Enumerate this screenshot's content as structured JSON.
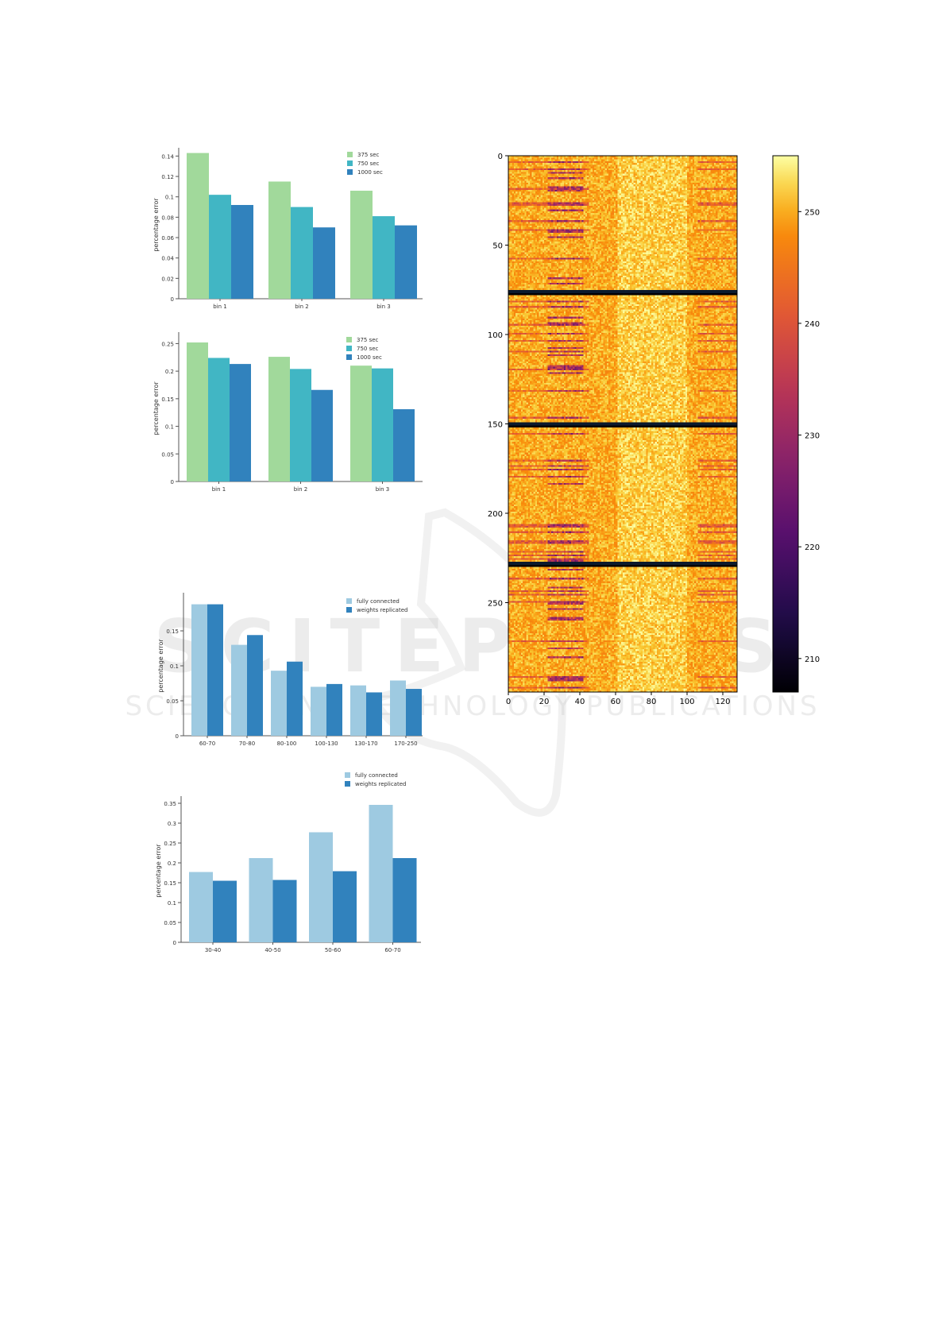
{
  "watermark": {
    "line1": "SCITEPRESS",
    "line2": "SCIENCE AND TECHNOLOGY PUBLICATIONS"
  },
  "colors": {
    "green": "#a1d99b",
    "teal": "#41b6c4",
    "blue": "#3182bd",
    "light_blue": "#9ecae1",
    "dark_blue": "#3182bd"
  },
  "chart_data": [
    {
      "id": "chart1",
      "type": "bar",
      "ylabel": "percentage error",
      "xlabel": "",
      "categories": [
        "bin 1",
        "bin 2",
        "bin 3"
      ],
      "ylim": [
        0,
        0.145
      ],
      "yticks": [
        0,
        0.02,
        0.04,
        0.06,
        0.08,
        0.1,
        0.12,
        0.14
      ],
      "ytick_labels": [
        "0",
        "0.02",
        "0.04",
        "0.06",
        "0.08",
        "0.1",
        "0.12",
        "0.14"
      ],
      "legend_position": "top-right",
      "series": [
        {
          "name": "375 sec",
          "color": "#a1d99b",
          "values": [
            0.143,
            0.115,
            0.106
          ]
        },
        {
          "name": "750 sec",
          "color": "#41b6c4",
          "values": [
            0.102,
            0.09,
            0.081
          ]
        },
        {
          "name": "1000 sec",
          "color": "#3182bd",
          "values": [
            0.092,
            0.07,
            0.072
          ]
        }
      ]
    },
    {
      "id": "chart2",
      "type": "bar",
      "ylabel": "percentage error",
      "xlabel": "",
      "categories": [
        "bin 1",
        "bin 2",
        "bin 3"
      ],
      "ylim": [
        0,
        0.265
      ],
      "yticks": [
        0,
        0.05,
        0.1,
        0.15,
        0.2,
        0.25
      ],
      "ytick_labels": [
        "0",
        "0.05",
        "0.1",
        "0.15",
        "0.2",
        "0.25"
      ],
      "legend_position": "top-right",
      "series": [
        {
          "name": "375 sec",
          "color": "#a1d99b",
          "values": [
            0.252,
            0.226,
            0.21
          ]
        },
        {
          "name": "750 sec",
          "color": "#41b6c4",
          "values": [
            0.224,
            0.204,
            0.205
          ]
        },
        {
          "name": "1000 sec",
          "color": "#3182bd",
          "values": [
            0.213,
            0.166,
            0.131
          ]
        }
      ]
    },
    {
      "id": "chart3",
      "type": "bar",
      "ylabel": "percentage error",
      "xlabel": "",
      "categories": [
        "60-70",
        "70-80",
        "80-100",
        "100-130",
        "130-170",
        "170-250"
      ],
      "ylim": [
        0,
        0.2
      ],
      "yticks": [
        0,
        0.05,
        0.1,
        0.15
      ],
      "ytick_labels": [
        "0",
        "0.05",
        "0.1",
        "0.15"
      ],
      "legend_position": "top-right",
      "series": [
        {
          "name": "fully connected",
          "color": "#9ecae1",
          "values": [
            0.188,
            0.13,
            0.093,
            0.07,
            0.072,
            0.079
          ]
        },
        {
          "name": "weights replicated",
          "color": "#3182bd",
          "values": [
            0.188,
            0.144,
            0.106,
            0.074,
            0.062,
            0.067
          ]
        }
      ]
    },
    {
      "id": "chart4",
      "type": "bar",
      "ylabel": "percentage error",
      "xlabel": "",
      "categories": [
        "30-40",
        "40-50",
        "50-60",
        "60-70"
      ],
      "ylim": [
        0,
        0.36
      ],
      "yticks": [
        0,
        0.05,
        0.1,
        0.15,
        0.2,
        0.25,
        0.3,
        0.35
      ],
      "ytick_labels": [
        "0",
        "0.05",
        "0.1",
        "0.15",
        "0.2",
        "0.25",
        "0.3",
        "0.35"
      ],
      "legend_position": "top-right",
      "series": [
        {
          "name": "fully connected",
          "color": "#9ecae1",
          "values": [
            0.177,
            0.212,
            0.277,
            0.346
          ]
        },
        {
          "name": "weights replicated",
          "color": "#3182bd",
          "values": [
            0.155,
            0.157,
            0.179,
            0.212
          ]
        }
      ]
    },
    {
      "id": "heatmap",
      "type": "heatmap",
      "rows": 300,
      "cols": 128,
      "xlim": [
        0,
        128
      ],
      "ylim": [
        300,
        0
      ],
      "xticks": [
        0,
        20,
        40,
        60,
        80,
        100,
        120
      ],
      "xtick_labels": [
        "0",
        "20",
        "40",
        "60",
        "80",
        "100",
        "120"
      ],
      "yticks": [
        0,
        50,
        100,
        150,
        200,
        250
      ],
      "ytick_labels": [
        "0",
        "50",
        "100",
        "150",
        "200",
        "250"
      ],
      "separator_rows": [
        76,
        150,
        228
      ],
      "colormap": "inferno",
      "colorbar": {
        "range": [
          207,
          255
        ],
        "ticks": [
          210,
          220,
          230,
          240,
          250
        ],
        "tick_labels": [
          "210",
          "220",
          "230",
          "240",
          "250"
        ]
      }
    }
  ]
}
